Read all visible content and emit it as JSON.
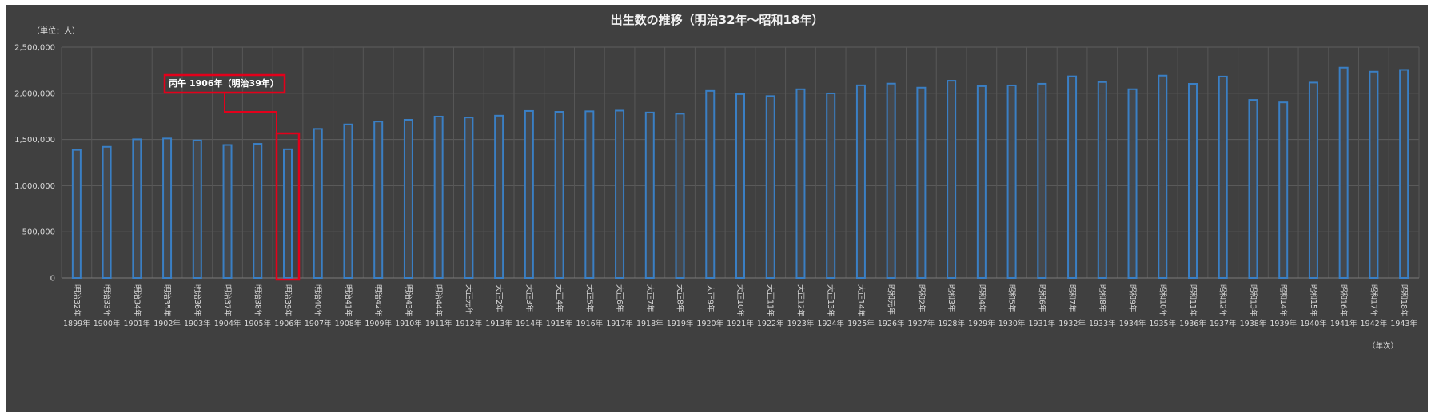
{
  "chart_data": {
    "type": "bar",
    "title": "出生数の推移（明治32年～昭和18年）",
    "unit_label": "（単位：人）",
    "xlabel": "（年次）",
    "ylim": [
      0,
      2500000
    ],
    "yticks": [
      "0",
      "500,000",
      "1,000,000",
      "1,500,000",
      "2,000,000",
      "2,500,000"
    ],
    "yticks_values": [
      0,
      500000,
      1000000,
      1500000,
      2000000,
      2500000
    ],
    "grid": true,
    "bar_color": "#3a7fc4",
    "highlight_color": "#e3001b",
    "categories": [
      "明治32年",
      "明治33年",
      "明治34年",
      "明治35年",
      "明治36年",
      "明治37年",
      "明治38年",
      "明治39年",
      "明治40年",
      "明治41年",
      "明治42年",
      "明治43年",
      "明治44年",
      "大正元年",
      "大正2年",
      "大正3年",
      "大正4年",
      "大正5年",
      "大正6年",
      "大正7年",
      "大正8年",
      "大正9年",
      "大正10年",
      "大正11年",
      "大正12年",
      "大正13年",
      "大正14年",
      "昭和元年",
      "昭和2年",
      "昭和3年",
      "昭和4年",
      "昭和5年",
      "昭和6年",
      "昭和7年",
      "昭和8年",
      "昭和9年",
      "昭和10年",
      "昭和11年",
      "昭和12年",
      "昭和13年",
      "昭和14年",
      "昭和15年",
      "昭和16年",
      "昭和17年",
      "昭和18年"
    ],
    "years": [
      "1899年",
      "1900年",
      "1901年",
      "1902年",
      "1903年",
      "1904年",
      "1905年",
      "1906年",
      "1907年",
      "1908年",
      "1909年",
      "1910年",
      "1911年",
      "1912年",
      "1913年",
      "1914年",
      "1915年",
      "1916年",
      "1917年",
      "1918年",
      "1919年",
      "1920年",
      "1921年",
      "1922年",
      "1923年",
      "1924年",
      "1925年",
      "1926年",
      "1927年",
      "1928年",
      "1929年",
      "1930年",
      "1931年",
      "1932年",
      "1933年",
      "1934年",
      "1935年",
      "1936年",
      "1937年",
      "1938年",
      "1939年",
      "1940年",
      "1941年",
      "1942年",
      "1943年"
    ],
    "values": [
      1386981,
      1420534,
      1501591,
      1510835,
      1489816,
      1440371,
      1452770,
      1394295,
      1614472,
      1662815,
      1693850,
      1712857,
      1747803,
      1737674,
      1757441,
      1808402,
      1799326,
      1804822,
      1812413,
      1791992,
      1778685,
      2025564,
      1990876,
      1969314,
      2043297,
      1998520,
      2086091,
      2104405,
      2060737,
      2135852,
      2077026,
      2085101,
      2102784,
      2182742,
      2121253,
      2043783,
      2190704,
      2101969,
      2180734,
      1928321,
      1901573,
      2115867,
      2277283,
      2233660,
      2253535
    ],
    "annotation": {
      "text": "丙午 1906年（明治39年）",
      "index": 7
    }
  }
}
